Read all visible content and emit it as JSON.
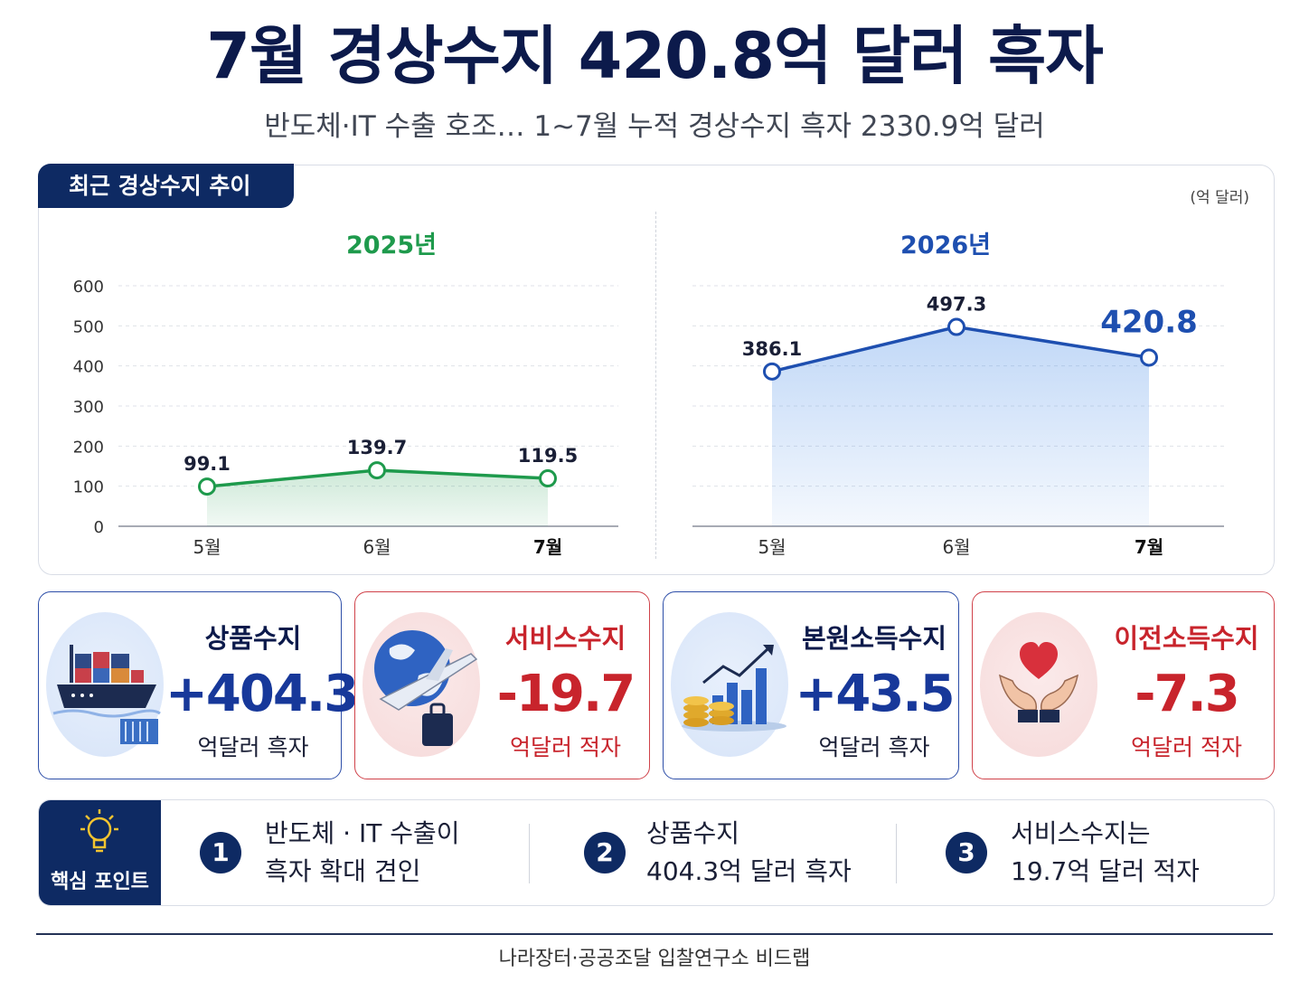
{
  "header": {
    "title": "7월 경상수지 420.8억 달러 흑자",
    "subtitle": "반도체·IT 수출 호조… 1~7월 누적 경상수지 흑자 2330.9억 달러"
  },
  "chart_panel": {
    "tab_label": "최근 경상수지 추이",
    "unit": "(억 달러)"
  },
  "chart_data": [
    {
      "type": "area",
      "title": "2025년",
      "categories": [
        "5월",
        "6월",
        "7월"
      ],
      "values": [
        99.1,
        139.7,
        119.5
      ],
      "value_labels": [
        "99.1",
        "139.7",
        "119.5"
      ],
      "yticks": [
        "600",
        "500",
        "400",
        "300",
        "200",
        "100",
        "0"
      ],
      "ylim": [
        0,
        600
      ],
      "grid": true,
      "color": "#1e9a4c"
    },
    {
      "type": "area",
      "title": "2026년",
      "categories": [
        "5월",
        "6월",
        "7월"
      ],
      "values": [
        386.1,
        497.3,
        420.8
      ],
      "value_labels": [
        "386.1",
        "497.3",
        "420.8"
      ],
      "ylim": [
        0,
        600
      ],
      "grid": true,
      "color": "#1e4fb0"
    }
  ],
  "cards": [
    {
      "title": "상품수지",
      "value": "+404.3",
      "sub": "억달러 흑자",
      "tone": "blue",
      "icon": "cargo-ship-icon"
    },
    {
      "title": "서비스수지",
      "value": "-19.7",
      "sub": "억달러 적자",
      "tone": "red",
      "icon": "globe-airplane-icon"
    },
    {
      "title": "본원소득수지",
      "value": "+43.5",
      "sub": "억달러 흑자",
      "tone": "blue",
      "icon": "coins-growth-icon"
    },
    {
      "title": "이전소득수지",
      "value": "-7.3",
      "sub": "억달러 적자",
      "tone": "red",
      "icon": "heart-hands-icon"
    }
  ],
  "key_points": {
    "label": "핵심 포인트",
    "icon": "lightbulb-icon",
    "items": [
      {
        "num": "1",
        "line1": "반도체 · IT 수출이",
        "line2": "흑자 확대 견인"
      },
      {
        "num": "2",
        "line1": "상품수지",
        "line2": "404.3억 달러 흑자"
      },
      {
        "num": "3",
        "line1": "서비스수지는",
        "line2": "19.7억 달러 적자"
      }
    ]
  },
  "footer": {
    "text": "나라장터·공공조달 입찰연구소 비드랩"
  },
  "colors": {
    "navy": "#0e2a63",
    "green": "#1e9a4c",
    "blue": "#1e4fb0",
    "red": "#c8242c"
  }
}
